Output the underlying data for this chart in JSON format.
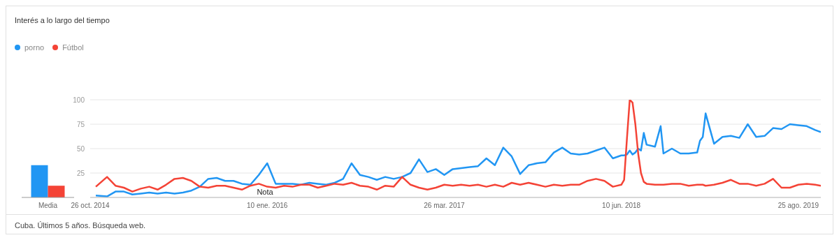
{
  "chart_data": [
    {
      "type": "bar",
      "categories": [
        "Media"
      ],
      "series": [
        {
          "color": "#2196f3",
          "values": [
            33
          ]
        },
        {
          "color": "#f44336",
          "values": [
            12
          ]
        }
      ],
      "ylim": [
        0,
        100
      ],
      "tick_labels": "x",
      "annotations": [
        "Cuba. Últimos 5 años. Búsqueda web."
      ]
    },
    {
      "type": "line",
      "title": "Interés a lo largo del tiempo",
      "legend": "top left",
      "grid": "y",
      "line_style": "solid",
      "x": [
        "2014-11-09",
        "2014-12-07",
        "2014-12-28",
        "2015-01-18",
        "2015-02-08",
        "2015-03-01",
        "2015-03-22",
        "2015-04-12",
        "2015-05-03",
        "2015-05-24",
        "2015-06-14",
        "2015-07-05",
        "2015-07-26",
        "2015-08-16",
        "2015-09-06",
        "2015-09-27",
        "2015-10-18",
        "2015-11-08",
        "2015-11-29",
        "2015-12-20",
        "2016-01-10",
        "2016-01-31",
        "2016-02-21",
        "2016-03-13",
        "2016-04-03",
        "2016-04-24",
        "2016-05-15",
        "2016-06-05",
        "2016-06-26",
        "2016-07-17",
        "2016-08-07",
        "2016-08-28",
        "2016-09-18",
        "2016-10-09",
        "2016-10-30",
        "2016-11-20",
        "2016-12-11",
        "2017-01-01",
        "2017-01-22",
        "2017-02-12",
        "2017-03-05",
        "2017-03-26",
        "2017-04-16",
        "2017-05-07",
        "2017-05-28",
        "2017-06-18",
        "2017-07-09",
        "2017-07-30",
        "2017-08-20",
        "2017-09-10",
        "2017-10-01",
        "2017-10-22",
        "2017-11-12",
        "2017-12-03",
        "2017-12-24",
        "2018-01-14",
        "2018-02-04",
        "2018-02-25",
        "2018-03-18",
        "2018-04-08",
        "2018-04-29",
        "2018-05-20",
        "2018-06-10",
        "2018-06-17",
        "2018-06-24",
        "2018-07-01",
        "2018-07-08",
        "2018-07-15",
        "2018-07-22",
        "2018-07-29",
        "2018-08-05",
        "2018-08-12",
        "2018-09-02",
        "2018-09-16",
        "2018-09-23",
        "2018-10-14",
        "2018-11-04",
        "2018-11-25",
        "2018-12-16",
        "2018-12-23",
        "2018-12-30",
        "2019-01-06",
        "2019-01-27",
        "2019-02-17",
        "2019-03-10",
        "2019-03-31",
        "2019-04-21",
        "2019-05-12",
        "2019-06-02",
        "2019-06-23",
        "2019-07-14",
        "2019-08-04",
        "2019-08-25",
        "2019-09-15",
        "2019-10-06",
        "2019-10-20"
      ],
      "series": [
        {
          "name": "porno",
          "color": "#2196f3",
          "values": [
            2,
            1,
            6,
            6,
            3,
            4,
            5,
            4,
            5,
            4,
            5,
            7,
            11,
            19,
            20,
            17,
            17,
            14,
            13,
            23,
            35,
            14,
            14,
            14,
            13,
            15,
            14,
            13,
            15,
            19,
            35,
            23,
            21,
            18,
            21,
            19,
            21,
            25,
            39,
            26,
            29,
            23,
            29,
            30,
            31,
            32,
            40,
            33,
            51,
            42,
            24,
            33,
            35,
            36,
            46,
            51,
            45,
            44,
            45,
            48,
            51,
            40,
            43,
            43,
            44,
            48,
            44,
            46,
            50,
            48,
            66,
            54,
            52,
            73,
            45,
            50,
            45,
            45,
            46,
            58,
            62,
            86,
            55,
            62,
            63,
            61,
            75,
            62,
            63,
            71,
            70,
            75,
            74,
            73,
            69,
            67
          ]
        },
        {
          "name": "Fútbol",
          "color": "#f44336",
          "values": [
            11,
            21,
            12,
            10,
            6,
            9,
            11,
            8,
            13,
            19,
            20,
            17,
            11,
            10,
            12,
            12,
            10,
            8,
            12,
            14,
            11,
            10,
            12,
            11,
            13,
            13,
            10,
            12,
            14,
            13,
            15,
            12,
            11,
            8,
            12,
            11,
            21,
            13,
            10,
            8,
            10,
            13,
            12,
            13,
            12,
            13,
            11,
            13,
            11,
            15,
            13,
            15,
            13,
            11,
            13,
            12,
            13,
            13,
            17,
            19,
            17,
            11,
            13,
            18,
            60,
            100,
            97,
            75,
            45,
            25,
            16,
            14,
            13,
            13,
            13,
            14,
            14,
            12,
            13,
            13,
            13,
            12,
            13,
            15,
            18,
            14,
            14,
            12,
            14,
            19,
            10,
            10,
            13,
            14,
            13,
            12
          ]
        }
      ],
      "xlim": [
        "2014-10-26",
        "2019-10-20"
      ],
      "xticks": [
        {
          "value": "2014-10-26",
          "label": "26 oct. 2014"
        },
        {
          "value": "2016-01-10",
          "label": "10 ene. 2016"
        },
        {
          "value": "2017-03-26",
          "label": "26 mar. 2017"
        },
        {
          "value": "2018-06-10",
          "label": "10 jun. 2018"
        },
        {
          "value": "2019-08-25",
          "label": "25 ago. 2019"
        }
      ],
      "ylim": [
        0,
        100
      ],
      "yticks": [
        {
          "value": 0,
          "label": null
        },
        25,
        50,
        75,
        100
      ],
      "annotations": [
        "Nota"
      ]
    }
  ]
}
